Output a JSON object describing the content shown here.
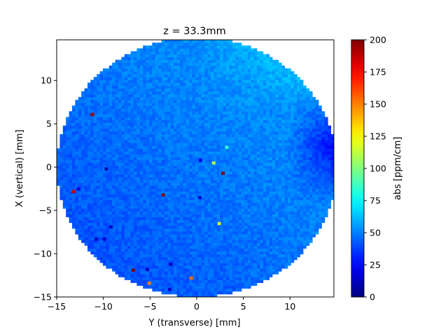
{
  "chart_data": {
    "type": "heatmap",
    "title": "z = 33.3mm",
    "xlabel": "Y (transverse) [mm]",
    "ylabel": "X (vertical) [mm]",
    "xlim": [
      -15,
      14.7
    ],
    "ylim": [
      -15,
      14.7
    ],
    "x_ticks": [
      -15,
      -10,
      -5,
      0,
      5,
      10
    ],
    "y_ticks": [
      -15,
      -10,
      -5,
      0,
      5,
      10
    ],
    "grid": false,
    "colormap": "jet",
    "colorbar": {
      "label": "abs [ppm/cm]",
      "range": [
        0,
        200
      ],
      "ticks": [
        0,
        25,
        50,
        75,
        100,
        125,
        150,
        175,
        200
      ]
    },
    "field": {
      "shape": "circle",
      "center": [
        0,
        0
      ],
      "radius_mm": 15,
      "pixel_size_mm": 0.33,
      "typical_value": 48,
      "value_range_bulk": [
        35,
        80
      ],
      "description": "values rise toward upper right (~70-80) and fall to ~20 along right edge around X=-2..8"
    },
    "outliers": [
      {
        "y": -11.2,
        "x": 6.1,
        "value": 195
      },
      {
        "y": -13.2,
        "x": -2.8,
        "value": 185
      },
      {
        "y": 2.8,
        "x": -0.7,
        "value": 200
      },
      {
        "y": -3.6,
        "x": -3.2,
        "value": 200
      },
      {
        "y": -6.8,
        "x": -11.9,
        "value": 200
      },
      {
        "y": -0.6,
        "x": -12.8,
        "value": 155
      },
      {
        "y": -5.1,
        "x": -13.4,
        "value": 150
      },
      {
        "y": 2.4,
        "x": -6.5,
        "value": 115
      },
      {
        "y": 0.3,
        "x": -3.5,
        "value": 18
      },
      {
        "y": -9.7,
        "x": -0.2,
        "value": 10
      },
      {
        "y": -9.9,
        "x": -8.3,
        "value": 15
      },
      {
        "y": -10.8,
        "x": -8.3,
        "value": 12
      },
      {
        "y": -9.2,
        "x": -6.9,
        "value": 15
      },
      {
        "y": -2.8,
        "x": -11.2,
        "value": 12
      },
      {
        "y": 0.4,
        "x": 0.8,
        "value": 20
      },
      {
        "y": -12.7,
        "x": -2.5,
        "value": 20
      },
      {
        "y": -5.3,
        "x": -11.8,
        "value": 12
      },
      {
        "y": -2.9,
        "x": -14.1,
        "value": 15
      },
      {
        "y": 1.8,
        "x": 0.5,
        "value": 110
      },
      {
        "y": 3.2,
        "x": 2.3,
        "value": 85
      }
    ]
  }
}
